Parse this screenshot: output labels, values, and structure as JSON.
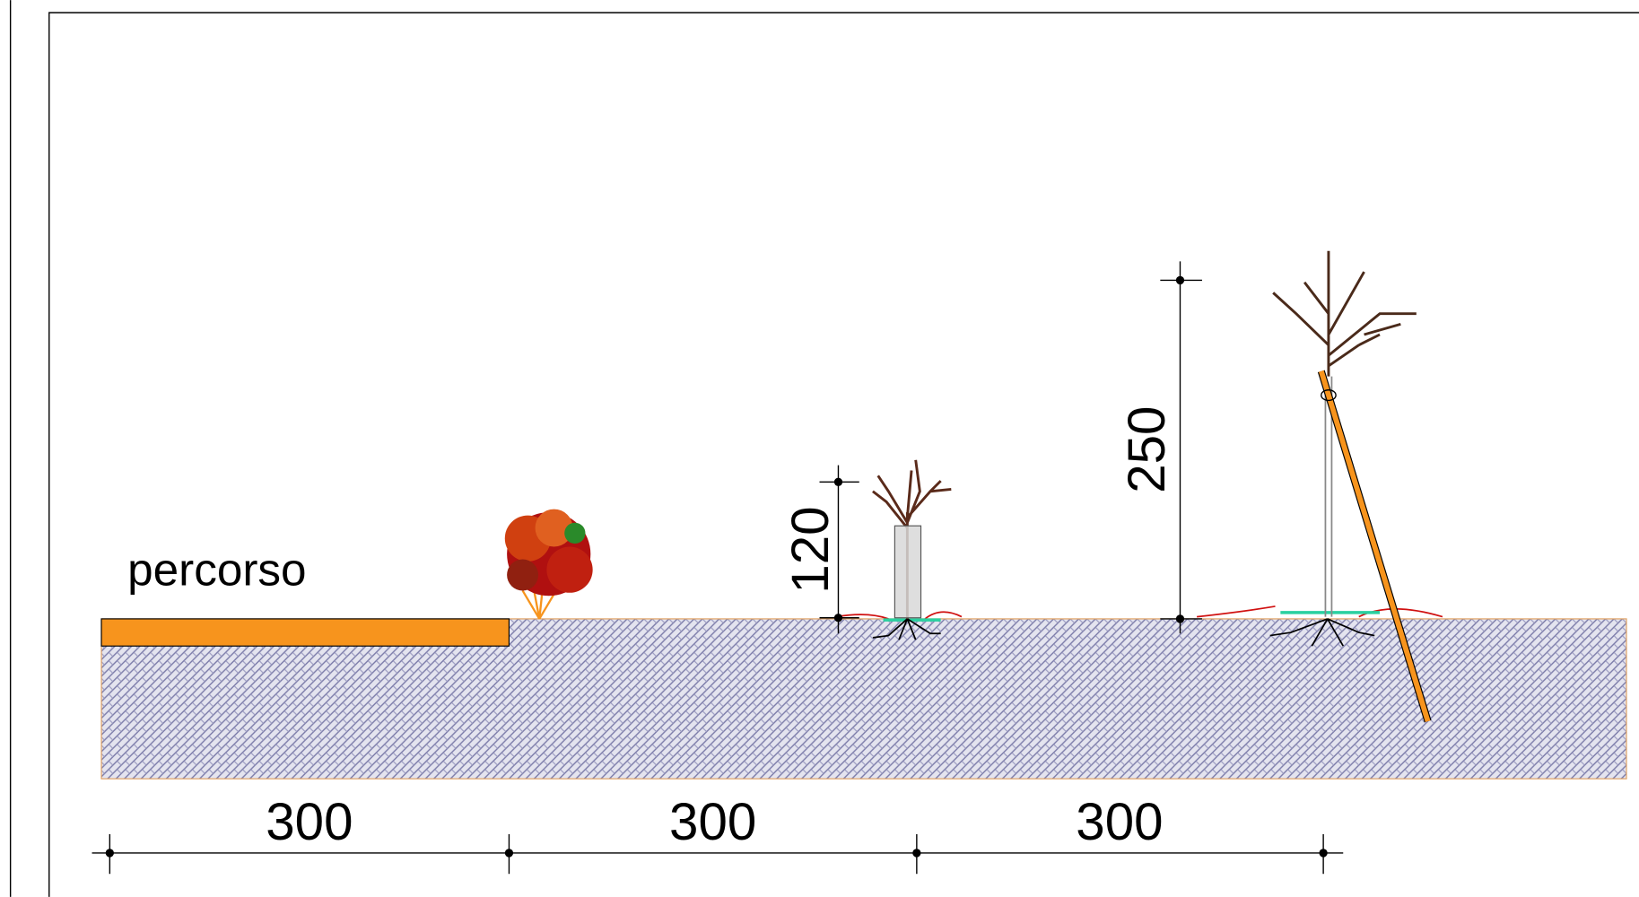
{
  "path_label": "percorso",
  "horizontal_dimensions": [
    "300",
    "300",
    "300"
  ],
  "vertical_dimensions": [
    "120",
    "250"
  ]
}
